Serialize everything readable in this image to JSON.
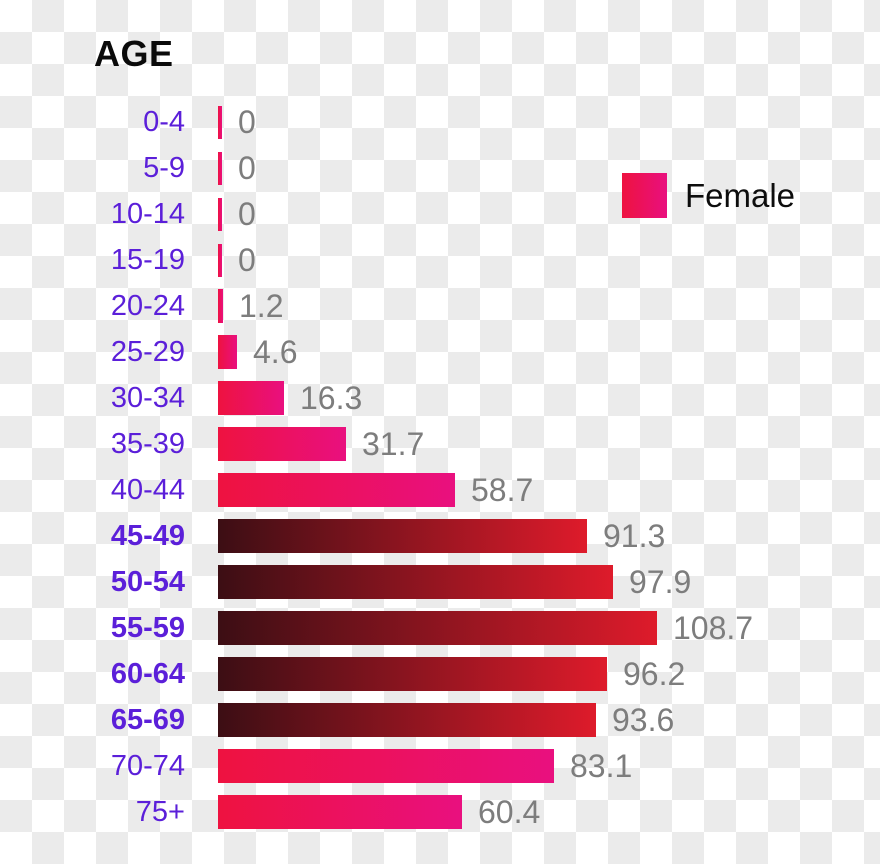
{
  "title": {
    "text": "AGE"
  },
  "legend": {
    "label": "Female"
  },
  "colors": {
    "age_label_purple": "#5b1fd9",
    "value_gray": "#7d7d7d",
    "title_black": "#0a0a0a",
    "legend_text_black": "#0d0d0d",
    "pink_gradient_start": "#ee1240",
    "pink_gradient_end": "#e9107f",
    "dark_gradient_start": "#3c0e14",
    "dark_gradient_end": "#de1b2b",
    "checker_gray": "#ebebeb",
    "checker_white": "#ffffff"
  },
  "chart_data": {
    "type": "bar",
    "orientation": "horizontal",
    "title": "AGE",
    "series_name": "Female",
    "categories": [
      "0-4",
      "5-9",
      "10-14",
      "15-19",
      "20-24",
      "25-29",
      "30-34",
      "35-39",
      "40-44",
      "45-49",
      "50-54",
      "55-59",
      "60-64",
      "65-69",
      "70-74",
      "75+"
    ],
    "values": [
      0,
      0,
      0,
      0,
      1.2,
      4.6,
      16.3,
      31.7,
      58.7,
      91.3,
      97.9,
      108.7,
      96.2,
      93.6,
      83.1,
      60.4
    ],
    "value_labels": [
      "0",
      "0",
      "0",
      "0",
      "1.2",
      "4.6",
      "16.3",
      "31.7",
      "58.7",
      "91.3",
      "97.9",
      "108.7",
      "96.2",
      "93.6",
      "83.1",
      "60.4"
    ],
    "xlim": [
      0,
      108.7
    ],
    "bar_style": [
      "pink",
      "pink",
      "pink",
      "pink",
      "pink",
      "pink",
      "pink",
      "pink",
      "pink",
      "dark",
      "dark",
      "dark",
      "dark",
      "dark",
      "pink",
      "pink"
    ],
    "bold_categories": [
      "45-49",
      "50-54",
      "55-59",
      "60-64",
      "65-69"
    ],
    "grid": false,
    "axes_shown": false,
    "legend_position": "top-right",
    "value_labels_shown": true
  }
}
